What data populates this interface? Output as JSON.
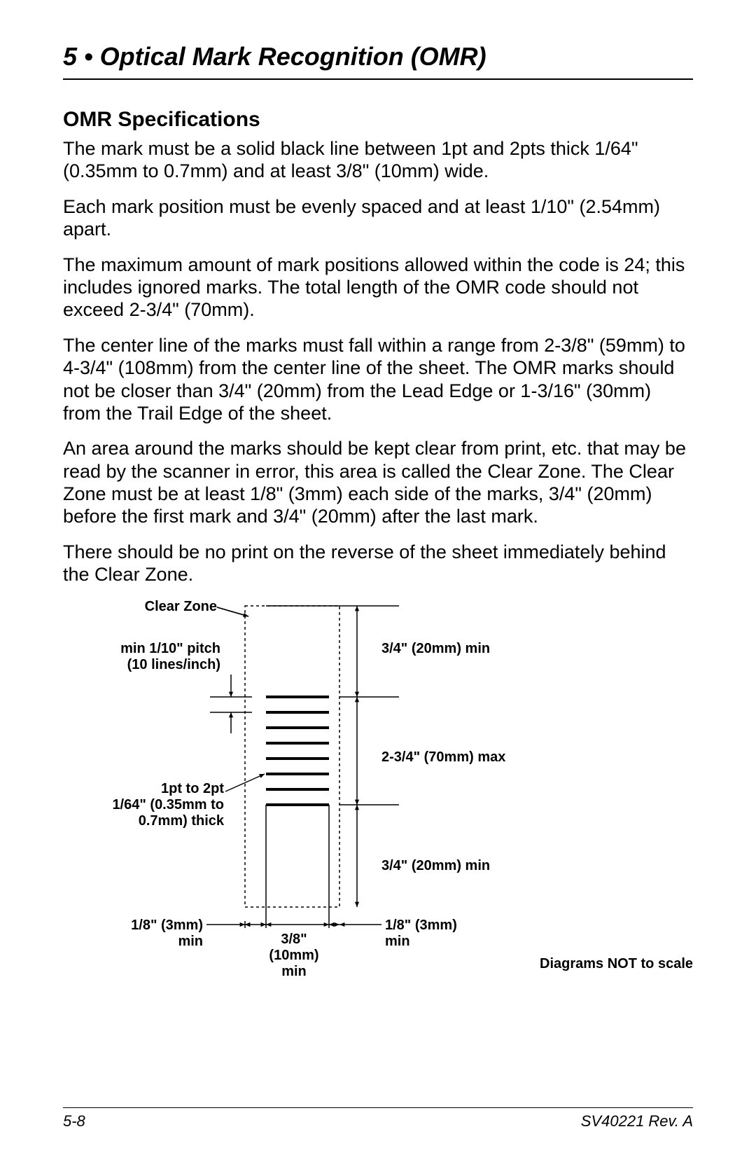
{
  "chapter": {
    "title": "5 • Optical Mark Recognition (OMR)"
  },
  "section": {
    "title": "OMR Specifications"
  },
  "paragraphs": {
    "p1": "The mark must be a solid black line between 1pt and 2pts thick 1/64\" (0.35mm to 0.7mm) and at least 3/8\" (10mm) wide.",
    "p2": "Each mark position must be evenly spaced and at least 1/10\" (2.54mm) apart.",
    "p3": "The maximum amount of mark positions allowed within the code is 24; this includes ignored marks. The total length of the OMR code should not exceed 2-3/4\" (70mm).",
    "p4": "The center line of the marks must fall within a range from 2-3/8\" (59mm) to 4-3/4\" (108mm) from the center line of the sheet. The OMR marks should not be closer than 3/4\" (20mm) from the Lead Edge or 1-3/16\" (30mm) from the Trail Edge of the sheet.",
    "p5": "An area around the marks should be kept clear from print, etc. that may be read by the scanner in error, this area is called the Clear Zone. The Clear Zone must be at least 1/8\" (3mm) each side of the marks, 3/4\" (20mm) before the first mark and 3/4\" (20mm) after the last mark.",
    "p6": "There should be no print on the reverse of the sheet immediately behind the Clear Zone."
  },
  "diagram": {
    "clear_zone_label": "Clear Zone",
    "pitch_label_l1": "min 1/10\" pitch",
    "pitch_label_l2": "(10 lines/inch)",
    "thick_label_l1": "1pt to 2pt",
    "thick_label_l2": "1/64\" (0.35mm to",
    "thick_label_l3": "0.7mm) thick",
    "top_clear_label": "3/4\" (20mm) min",
    "code_len_label": "2-3/4\" (70mm) max",
    "bottom_clear_label": "3/4\" (20mm) min",
    "left_margin_l1": "1/8\" (3mm)",
    "left_margin_l2": "min",
    "right_margin_l1": "1/8\" (3mm)",
    "right_margin_l2": "min",
    "mark_width_l1": "3/8\"",
    "mark_width_l2": "(10mm)",
    "mark_width_l3": "min",
    "not_to_scale": "Diagrams NOT to scale",
    "mark_count": 8,
    "stroke": "#000000",
    "dash": "4,4",
    "mark_thickness": 4
  },
  "footer": {
    "page": "5-8",
    "doc": "SV40221  Rev. A"
  }
}
